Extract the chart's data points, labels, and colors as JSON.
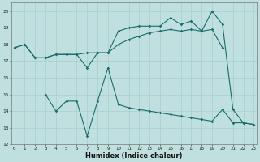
{
  "background_color": "#c0e0e0",
  "line_color": "#1a6b6b",
  "grid_color": "#a8cccc",
  "xlabel": "Humidex (Indice chaleur)",
  "ylim": [
    12,
    20.5
  ],
  "xlim": [
    -0.3,
    23.3
  ],
  "yticks": [
    12,
    13,
    14,
    15,
    16,
    17,
    18,
    19,
    20
  ],
  "xticks": [
    0,
    1,
    2,
    3,
    4,
    5,
    6,
    7,
    8,
    9,
    10,
    11,
    12,
    13,
    14,
    15,
    16,
    17,
    18,
    19,
    20,
    21,
    22,
    23
  ],
  "series1_x": [
    0,
    1,
    2,
    3,
    4,
    5,
    6,
    7,
    8,
    9,
    10,
    11,
    12,
    13,
    14,
    15,
    16,
    17,
    18,
    19,
    20
  ],
  "series1_y": [
    17.8,
    18.0,
    17.2,
    17.2,
    17.4,
    17.4,
    17.4,
    17.5,
    17.5,
    17.5,
    18.0,
    18.3,
    18.5,
    18.7,
    18.8,
    18.9,
    18.8,
    18.9,
    18.8,
    18.9,
    17.8
  ],
  "series2_x": [
    0,
    1,
    2,
    3,
    4,
    5,
    6,
    7,
    8,
    9,
    10,
    11,
    12,
    13,
    14,
    15,
    16,
    17,
    18,
    19,
    20,
    21,
    22,
    23
  ],
  "series2_y": [
    17.8,
    18.0,
    17.2,
    17.2,
    17.4,
    17.4,
    17.4,
    16.6,
    17.5,
    17.5,
    18.8,
    19.0,
    19.1,
    19.1,
    19.1,
    19.6,
    19.2,
    19.4,
    18.8,
    20.0,
    19.2,
    14.1,
    13.3,
    13.2
  ],
  "series3_x": [
    3,
    4,
    5,
    6,
    7,
    8,
    9,
    10,
    11,
    12,
    13,
    14,
    15,
    16,
    17,
    18,
    19,
    20,
    21,
    22,
    23
  ],
  "series3_y": [
    15.0,
    14.0,
    14.6,
    14.6,
    12.5,
    14.6,
    16.6,
    14.4,
    14.2,
    14.1,
    14.0,
    13.9,
    13.8,
    13.7,
    13.6,
    13.5,
    13.4,
    14.1,
    13.3,
    13.3,
    13.2
  ]
}
